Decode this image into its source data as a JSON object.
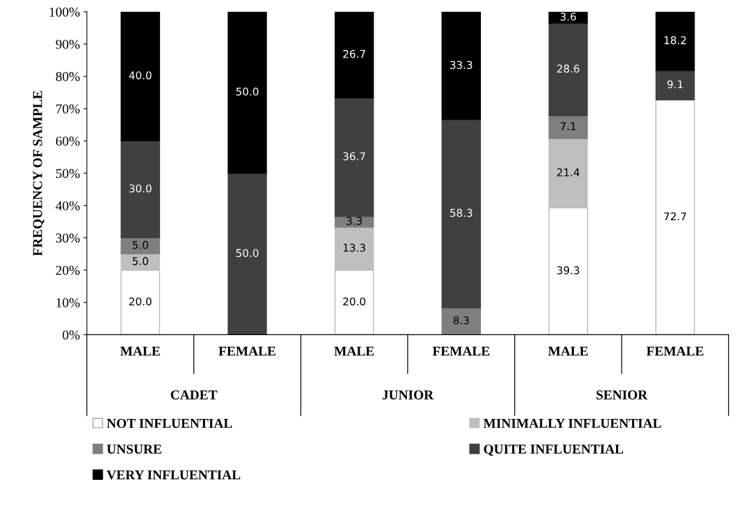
{
  "chart_data": {
    "type": "bar",
    "stacked": true,
    "ylabel": "FREQUENCY OF SAMPLE",
    "categories": [
      "MALE",
      "FEMALE",
      "MALE",
      "FEMALE",
      "MALE",
      "FEMALE"
    ],
    "annotations": [
      "CADET",
      "JUNIOR",
      "SENIOR"
    ],
    "series": [
      {
        "name": "NOT INFLUENTIAL",
        "color": "#ffffff",
        "values": [
          20.0,
          0,
          20.0,
          0,
          39.3,
          72.7
        ],
        "value_labels": [
          "20.0",
          null,
          "20.0",
          null,
          "39.3",
          "72.7"
        ]
      },
      {
        "name": "MINIMALLY INFLUENTIAL",
        "color": "#bfbfbf",
        "values": [
          5.0,
          0,
          13.3,
          0,
          21.4,
          0
        ],
        "value_labels": [
          "5.0",
          null,
          "13.3",
          null,
          "21.4",
          null
        ]
      },
      {
        "name": "UNSURE",
        "color": "#7f7f7f",
        "values": [
          5.0,
          0,
          3.3,
          8.3,
          7.1,
          0
        ],
        "value_labels": [
          "5.0",
          null,
          "3.3",
          "8.3",
          "7.1",
          null
        ]
      },
      {
        "name": "QUITE INFLUENTIAL",
        "color": "#404040",
        "values": [
          30.0,
          50.0,
          36.7,
          58.3,
          28.6,
          9.1
        ],
        "value_labels": [
          "30.0",
          "50.0",
          "36.7",
          "58.3",
          "28.6",
          "9.1"
        ]
      },
      {
        "name": "VERY INFLUENTIAL",
        "color": "#000000",
        "values": [
          40.0,
          50.0,
          26.7,
          33.3,
          3.6,
          18.2
        ],
        "value_labels": [
          "40.0",
          "50.0",
          "26.7",
          "33.3",
          "3.6",
          "18.2"
        ]
      }
    ],
    "ylim": [
      0,
      100
    ],
    "yticks": [
      {
        "value": 0,
        "label": "0%"
      },
      {
        "value": 10,
        "label": "10%"
      },
      {
        "value": 20,
        "label": "20%"
      },
      {
        "value": 30,
        "label": "30%"
      },
      {
        "value": 40,
        "label": "40%"
      },
      {
        "value": 50,
        "label": "50%"
      },
      {
        "value": 60,
        "label": "60%"
      },
      {
        "value": 70,
        "label": "70%"
      },
      {
        "value": 80,
        "label": "80%"
      },
      {
        "value": 90,
        "label": "90%"
      },
      {
        "value": 100,
        "label": "100%"
      }
    ],
    "grid": false,
    "legend": "bottom"
  }
}
